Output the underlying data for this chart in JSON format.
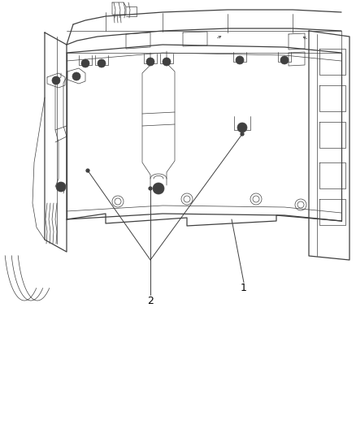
{
  "bg_color": "#ffffff",
  "line_color": "#404040",
  "label_color": "#000000",
  "fig_width": 4.38,
  "fig_height": 5.33,
  "dpi": 100,
  "label1": "1",
  "label2": "2",
  "annotation_fontsize": 9,
  "lw_main": 0.9,
  "lw_thin": 0.5,
  "lw_med": 0.7
}
